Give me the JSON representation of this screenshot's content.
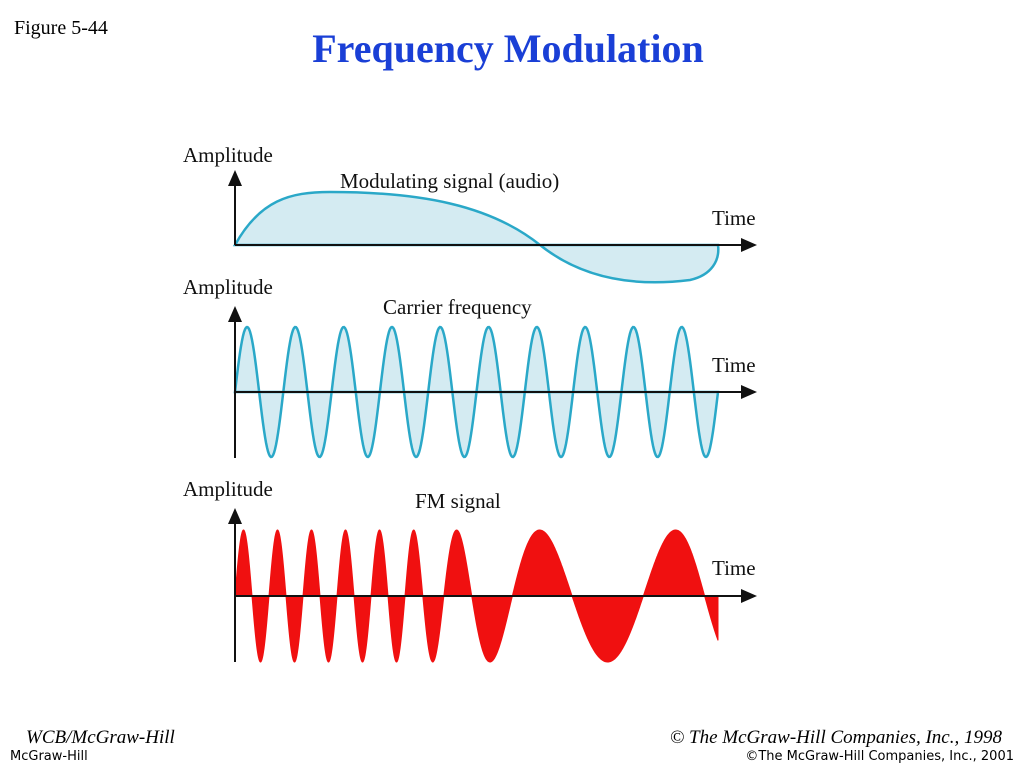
{
  "header": {
    "figure": "Figure 5-44",
    "title": "Frequency Modulation"
  },
  "panels": [
    {
      "y_label": "Amplitude",
      "caption": "Modulating signal (audio)",
      "x_label": "Time"
    },
    {
      "y_label": "Amplitude",
      "caption": "Carrier frequency",
      "x_label": "Time"
    },
    {
      "y_label": "Amplitude",
      "caption": "FM signal",
      "x_label": "Time"
    }
  ],
  "footer": {
    "left": "WCB/McGraw-Hill",
    "right": "© The McGraw-Hill Companies, Inc., 1998",
    "small_left": "McGraw-Hill",
    "small_right": "©The McGraw-Hill Companies, Inc., 2001"
  }
}
